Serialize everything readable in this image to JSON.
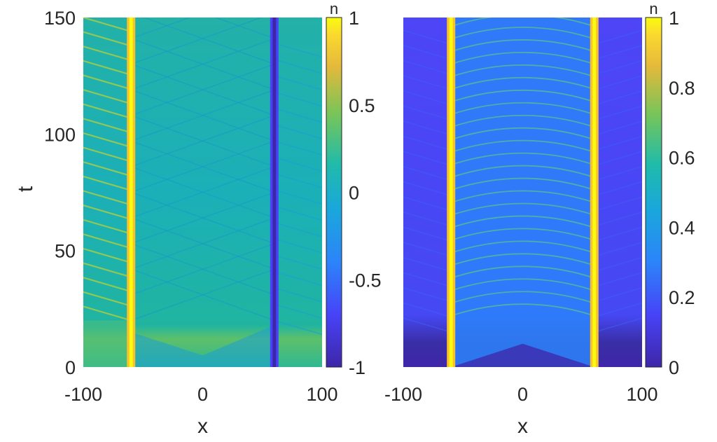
{
  "chart_data": [
    {
      "type": "heatmap",
      "xlabel": "x",
      "ylabel": "t",
      "colorbar_label": "n",
      "x_ticks": [
        "-100",
        "0",
        "100"
      ],
      "y_ticks": [
        "0",
        "50",
        "100",
        "150"
      ],
      "xlim": [
        -100,
        100
      ],
      "ylim": [
        0,
        150
      ],
      "colorbar_ticks": [
        "-1",
        "-0.5",
        "0",
        "0.5",
        "1"
      ],
      "clim": [
        -1,
        1
      ],
      "colormap": "parula",
      "colors": {
        "low": "#3e26a8",
        "mid": "#18b3b8",
        "high": "#f9fb0e"
      },
      "features": [
        {
          "name": "bright soliton",
          "x": -60,
          "value": 1
        },
        {
          "name": "dark soliton",
          "x": 60,
          "value": -1
        },
        {
          "name": "background",
          "value": 0
        }
      ]
    },
    {
      "type": "heatmap",
      "xlabel": "x",
      "ylabel": "",
      "colorbar_label": "n",
      "x_ticks": [
        "-100",
        "0",
        "100"
      ],
      "y_ticks": [],
      "xlim": [
        -100,
        100
      ],
      "ylim": [
        0,
        150
      ],
      "colorbar_ticks": [
        "0",
        "0.2",
        "0.4",
        "0.6",
        "0.8",
        "1"
      ],
      "clim": [
        0,
        1
      ],
      "colormap": "parula",
      "colors": {
        "low": "#3e26a8",
        "mid": "#18b3b8",
        "high": "#f9fb0e"
      },
      "features": [
        {
          "name": "left soliton",
          "x": -60,
          "value": 1
        },
        {
          "name": "right soliton",
          "x": 60,
          "value": 1
        },
        {
          "name": "background",
          "value": 0.25
        }
      ]
    }
  ]
}
